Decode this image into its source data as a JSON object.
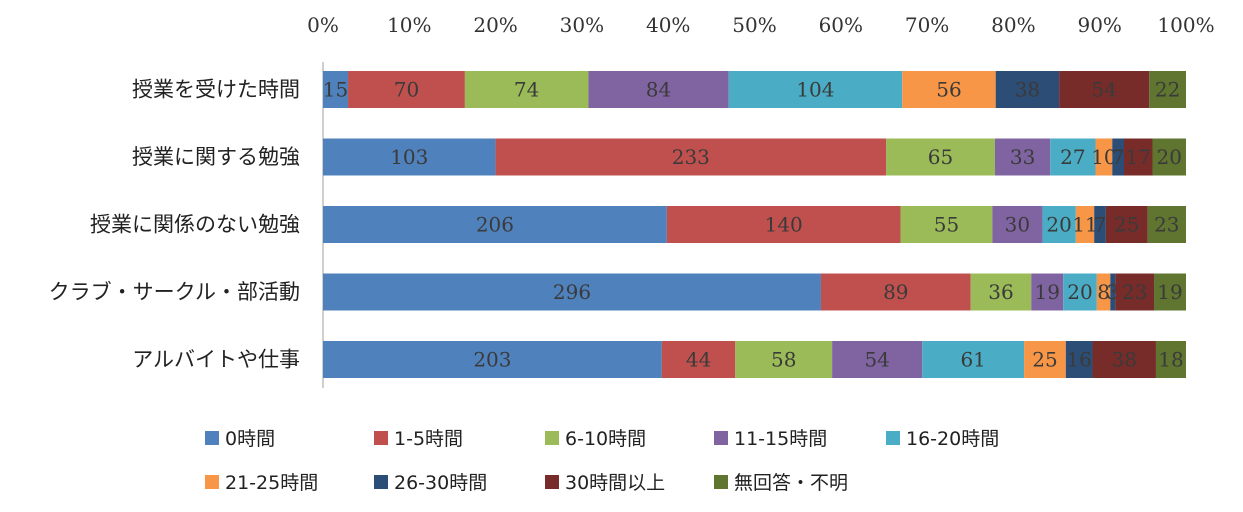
{
  "chart_data": {
    "type": "bar",
    "orientation": "horizontal",
    "stacked": "percent",
    "xlim": [
      0,
      100
    ],
    "x_ticks": [
      "0%",
      "10%",
      "20%",
      "30%",
      "40%",
      "50%",
      "60%",
      "70%",
      "80%",
      "90%",
      "100%"
    ],
    "categories": [
      "授業を受けた時間",
      "授業に関する勉強",
      "授業に関係のない勉強",
      "クラブ・サークル・部活動",
      "アルバイトや仕事"
    ],
    "series": [
      {
        "name": "0時間",
        "color": "#4f81bd",
        "values": [
          15,
          103,
          206,
          296,
          203
        ]
      },
      {
        "name": "1-5時間",
        "color": "#c0504d",
        "values": [
          70,
          233,
          140,
          89,
          44
        ]
      },
      {
        "name": "6-10時間",
        "color": "#9bbb59",
        "values": [
          74,
          65,
          55,
          36,
          58
        ]
      },
      {
        "name": "11-15時間",
        "color": "#8064a2",
        "values": [
          84,
          33,
          30,
          19,
          54
        ]
      },
      {
        "name": "16-20時間",
        "color": "#4bacc6",
        "values": [
          104,
          27,
          20,
          20,
          61
        ]
      },
      {
        "name": "21-25時間",
        "color": "#f79646",
        "values": [
          56,
          10,
          11,
          8,
          25
        ]
      },
      {
        "name": "26-30時間",
        "color": "#2c4d75",
        "values": [
          38,
          7,
          7,
          3,
          16
        ]
      },
      {
        "name": "30時間以上",
        "color": "#772c2a",
        "values": [
          54,
          17,
          25,
          23,
          38
        ]
      },
      {
        "name": "無回答・不明",
        "color": "#5f7530",
        "values": [
          22,
          20,
          23,
          19,
          18
        ]
      }
    ],
    "legend_position": "bottom",
    "grid": false
  }
}
